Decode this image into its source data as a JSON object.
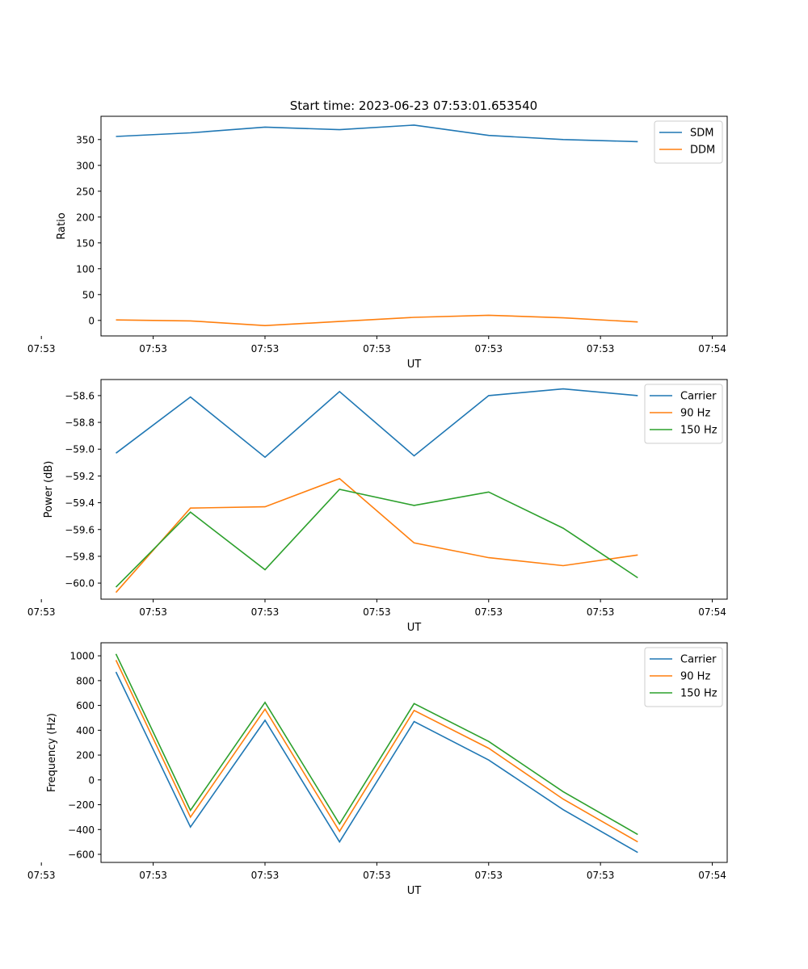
{
  "figure": {
    "title": "Start time: 2023-06-23 07:53:01.653540"
  },
  "chart_data": [
    {
      "type": "line",
      "xlabel": "UT",
      "ylabel": "Ratio",
      "x": [
        1,
        2,
        3,
        4,
        5,
        6,
        7,
        8
      ],
      "xlim": [
        0.8,
        9.2
      ],
      "xticks": [
        1,
        2.5,
        4,
        5.5,
        7,
        8.5
      ],
      "xticks_base": [
        0,
        1.5,
        3,
        4.5,
        6,
        7.5,
        9
      ],
      "xtick_labels": [
        "07:53",
        "07:53",
        "07:53",
        "07:53",
        "07:53",
        "07:53",
        "07:54"
      ],
      "ylim": [
        -30,
        395
      ],
      "yticks": [
        0,
        50,
        100,
        150,
        200,
        250,
        300,
        350
      ],
      "ytick_labels": [
        "0",
        "50",
        "100",
        "150",
        "200",
        "250",
        "300",
        "350"
      ],
      "grid": false,
      "legend_position": "top-right",
      "series": [
        {
          "name": "SDM",
          "color": "#1f77b4",
          "values": [
            356,
            363,
            374,
            369,
            378,
            358,
            350,
            346
          ]
        },
        {
          "name": "DDM",
          "color": "#ff7f0e",
          "values": [
            1,
            -1,
            -10,
            -2,
            6,
            10,
            5,
            -3
          ]
        }
      ]
    },
    {
      "type": "line",
      "xlabel": "UT",
      "ylabel": "Power (dB)",
      "x": [
        1,
        2,
        3,
        4,
        5,
        6,
        7,
        8
      ],
      "xlim": [
        0.8,
        9.2
      ],
      "xticks_base": [
        0,
        1.5,
        3,
        4.5,
        6,
        7.5,
        9
      ],
      "xtick_labels": [
        "07:53",
        "07:53",
        "07:53",
        "07:53",
        "07:53",
        "07:53",
        "07:54"
      ],
      "ylim": [
        -60.12,
        -58.48
      ],
      "yticks": [
        -60.0,
        -59.8,
        -59.6,
        -59.4,
        -59.2,
        -59.0,
        -58.8,
        -58.6
      ],
      "ytick_labels": [
        "−60.0",
        "−59.8",
        "−59.6",
        "−59.4",
        "−59.2",
        "−59.0",
        "−58.8",
        "−58.6"
      ],
      "grid": false,
      "legend_position": "top-right",
      "series": [
        {
          "name": "Carrier",
          "color": "#1f77b4",
          "values": [
            -59.03,
            -58.61,
            -59.06,
            -58.57,
            -59.05,
            -58.6,
            -58.55,
            -58.6
          ]
        },
        {
          "name": "90 Hz",
          "color": "#ff7f0e",
          "values": [
            -60.07,
            -59.44,
            -59.43,
            -59.22,
            -59.7,
            -59.81,
            -59.87,
            -59.79
          ]
        },
        {
          "name": "150 Hz",
          "color": "#2ca02c",
          "values": [
            -60.03,
            -59.47,
            -59.9,
            -59.3,
            -59.42,
            -59.32,
            -59.59,
            -59.96
          ]
        }
      ]
    },
    {
      "type": "line",
      "xlabel": "UT",
      "ylabel": "Frequency (Hz)",
      "x": [
        1,
        2,
        3,
        4,
        5,
        6,
        7,
        8
      ],
      "xlim": [
        0.8,
        9.2
      ],
      "xticks_base": [
        0,
        1.5,
        3,
        4.5,
        6,
        7.5,
        9
      ],
      "xtick_labels": [
        "07:53",
        "07:53",
        "07:53",
        "07:53",
        "07:53",
        "07:53",
        "07:54"
      ],
      "ylim": [
        -665,
        1105
      ],
      "yticks": [
        -600,
        -400,
        -200,
        0,
        200,
        400,
        600,
        800,
        1000
      ],
      "ytick_labels": [
        "−600",
        "−400",
        "−200",
        "0",
        "200",
        "400",
        "600",
        "800",
        "1000"
      ],
      "grid": false,
      "legend_position": "top-right",
      "series": [
        {
          "name": "Carrier",
          "color": "#1f77b4",
          "values": [
            870,
            -380,
            480,
            -500,
            470,
            160,
            -240,
            -585
          ]
        },
        {
          "name": "90 Hz",
          "color": "#ff7f0e",
          "values": [
            965,
            -300,
            570,
            -415,
            560,
            255,
            -155,
            -500
          ]
        },
        {
          "name": "150 Hz",
          "color": "#2ca02c",
          "values": [
            1015,
            -245,
            625,
            -355,
            615,
            310,
            -95,
            -440
          ]
        }
      ]
    }
  ]
}
